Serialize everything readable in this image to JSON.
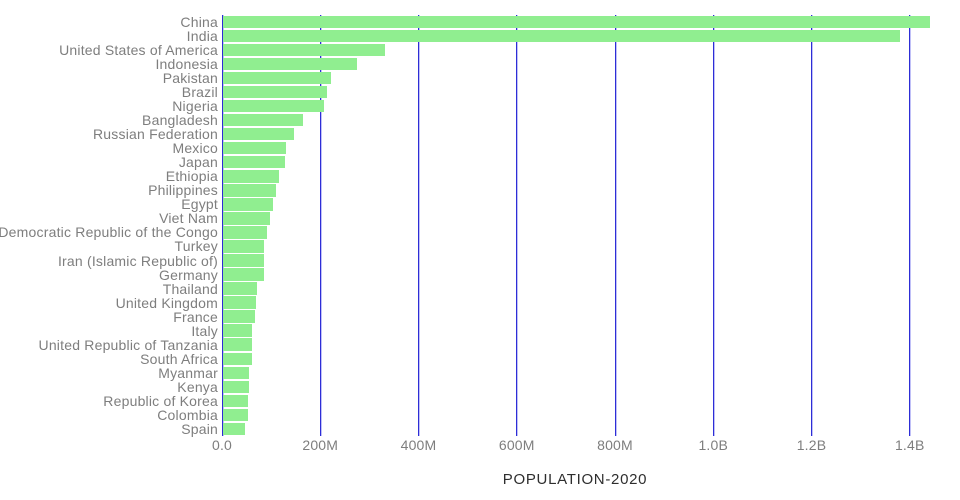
{
  "chart_data": {
    "type": "bar",
    "orientation": "horizontal",
    "title": "",
    "xlabel": "POPULATION-2020",
    "ylabel": "",
    "legend": "none",
    "grid": "vertical",
    "xlim_millions": [
      0,
      1500
    ],
    "categories": [
      "China",
      "India",
      "United States of America",
      "Indonesia",
      "Pakistan",
      "Brazil",
      "Nigeria",
      "Bangladesh",
      "Russian Federation",
      "Mexico",
      "Japan",
      "Ethiopia",
      "Philippines",
      "Egypt",
      "Viet Nam",
      "Democratic Republic of the Congo",
      "Turkey",
      "Iran (Islamic Republic of)",
      "Germany",
      "Thailand",
      "United Kingdom",
      "France",
      "Italy",
      "United Republic of Tanzania",
      "South Africa",
      "Myanmar",
      "Kenya",
      "Republic of Korea",
      "Colombia",
      "Spain"
    ],
    "values_millions": [
      1439.3,
      1380.0,
      331.0,
      273.5,
      220.9,
      212.6,
      206.1,
      164.7,
      145.9,
      128.9,
      126.5,
      115.0,
      109.6,
      102.3,
      97.3,
      89.6,
      84.3,
      84.0,
      83.8,
      69.8,
      67.9,
      65.3,
      60.5,
      59.7,
      59.3,
      54.4,
      53.8,
      51.3,
      50.9,
      46.8
    ],
    "x_ticks": [
      {
        "label": "0.0",
        "millions": 0
      },
      {
        "label": "200M",
        "millions": 200
      },
      {
        "label": "400M",
        "millions": 400
      },
      {
        "label": "600M",
        "millions": 600
      },
      {
        "label": "800M",
        "millions": 800
      },
      {
        "label": "1.0B",
        "millions": 1000
      },
      {
        "label": "1.2B",
        "millions": 1200
      },
      {
        "label": "1.4B",
        "millions": 1400
      }
    ],
    "colors": {
      "bar": "#90ee90",
      "gridline": "#2d2dd6",
      "gridline_halo": "rgba(140,140,240,0.55)",
      "category_label": "#7e7e7e",
      "tick_label": "#7e7e7e",
      "axis_title": "#2e2e2e",
      "background": "#ffffff"
    }
  }
}
